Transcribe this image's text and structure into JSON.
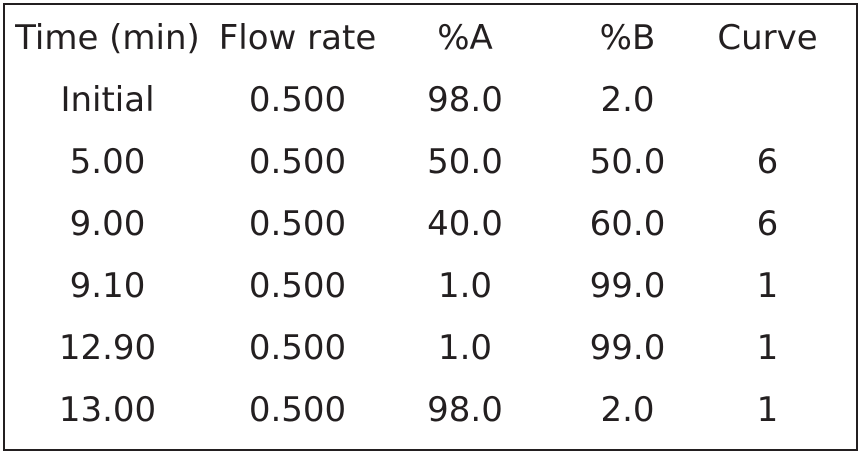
{
  "table": {
    "headers": [
      "Time (min)",
      "Flow rate",
      "%A",
      "%B",
      "Curve"
    ],
    "rows": [
      [
        "Initial",
        "0.500",
        "98.0",
        "2.0",
        ""
      ],
      [
        "5.00",
        "0.500",
        "50.0",
        "50.0",
        "6"
      ],
      [
        "9.00",
        "0.500",
        "40.0",
        "60.0",
        "6"
      ],
      [
        "9.10",
        "0.500",
        "1.0",
        "99.0",
        "1"
      ],
      [
        "12.90",
        "0.500",
        "1.0",
        "99.0",
        "1"
      ],
      [
        "13.00",
        "0.500",
        "98.0",
        "2.0",
        "1"
      ]
    ]
  }
}
